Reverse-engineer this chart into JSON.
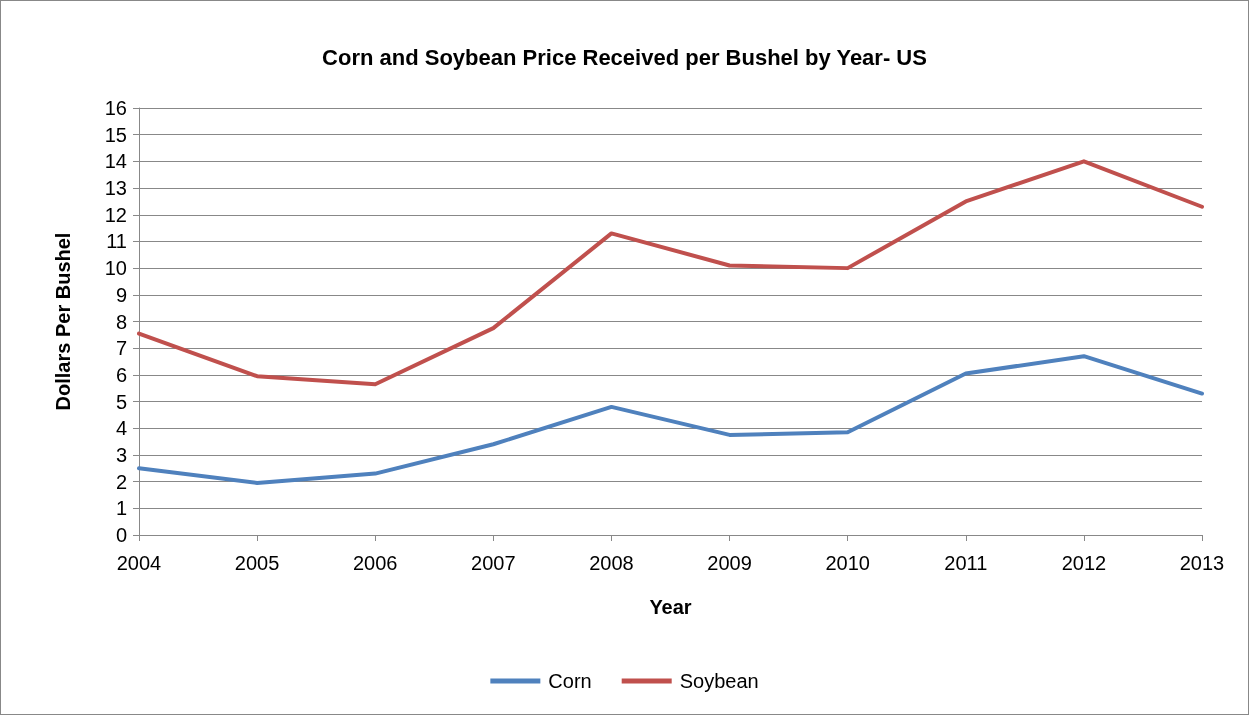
{
  "chart_data": {
    "type": "line",
    "title": "Corn and Soybean Price Received per Bushel by Year- US",
    "xlabel": "Year",
    "ylabel": "Dollars Per Bushel",
    "categories": [
      "2004",
      "2005",
      "2006",
      "2007",
      "2008",
      "2009",
      "2010",
      "2011",
      "2012",
      "2013"
    ],
    "series": [
      {
        "name": "Corn",
        "color": "#4f81bd",
        "values": [
          2.5,
          1.95,
          2.3,
          3.4,
          4.8,
          3.75,
          3.85,
          6.05,
          6.7,
          5.3
        ]
      },
      {
        "name": "Soybean",
        "color": "#c0504d",
        "values": [
          7.55,
          5.95,
          5.65,
          7.75,
          11.3,
          10.1,
          10.0,
          12.5,
          14.0,
          12.3
        ]
      }
    ],
    "ylim": [
      0,
      16
    ],
    "yticks": [
      0,
      1,
      2,
      3,
      4,
      5,
      6,
      7,
      8,
      9,
      10,
      11,
      12,
      13,
      14,
      15,
      16
    ],
    "grid": "y",
    "legend": "bottom",
    "marker": "none",
    "line_style": "solid"
  }
}
